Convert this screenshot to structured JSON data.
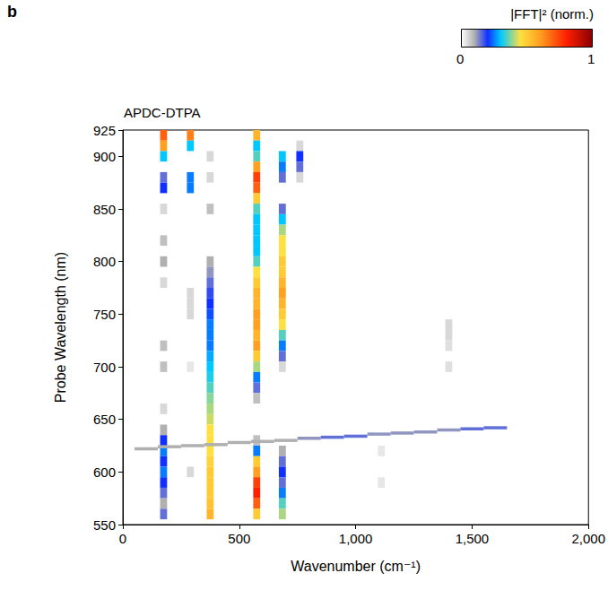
{
  "chart_data": {
    "type": "heatmap",
    "panel_label": "b",
    "title": "APDC-DTPA",
    "x_label": "Wavenumber (cm⁻¹)",
    "y_label": "Probe Wavelength (nm)",
    "xlim": [
      0,
      2000
    ],
    "xticks": [
      0,
      500,
      1000,
      1500,
      2000
    ],
    "ylim": [
      550,
      925
    ],
    "yticks": [
      550,
      600,
      650,
      700,
      750,
      800,
      850,
      900
    ],
    "grid": false,
    "colorbar": {
      "label": "|FFT|² (norm.)",
      "range": [
        0,
        1
      ],
      "ticks": [
        0,
        1
      ]
    },
    "cell_groups": [
      {
        "cell_width": 30,
        "cell_height": 10,
        "cells": [
          [
            175,
            920,
            0.7
          ],
          [
            175,
            910,
            0.6
          ],
          [
            175,
            900,
            0.3
          ],
          [
            175,
            880,
            0.15
          ],
          [
            175,
            870,
            0.2
          ],
          [
            175,
            850,
            0.05
          ],
          [
            175,
            820,
            0.08
          ],
          [
            175,
            800,
            0.1
          ],
          [
            175,
            780,
            0.05
          ],
          [
            175,
            720,
            0.08
          ],
          [
            175,
            700,
            0.08
          ],
          [
            175,
            660,
            0.05
          ],
          [
            175,
            640,
            0.1
          ],
          [
            175,
            630,
            0.2
          ],
          [
            175,
            620,
            0.25
          ],
          [
            175,
            610,
            0.2
          ],
          [
            175,
            600,
            0.25
          ],
          [
            175,
            590,
            0.2
          ],
          [
            175,
            580,
            0.15
          ],
          [
            175,
            570,
            0.1
          ],
          [
            175,
            560,
            0.15
          ],
          [
            290,
            920,
            0.65
          ],
          [
            290,
            910,
            0.3
          ],
          [
            290,
            880,
            0.25
          ],
          [
            290,
            870,
            0.25
          ],
          [
            290,
            770,
            0.05
          ],
          [
            290,
            760,
            0.05
          ],
          [
            290,
            750,
            0.05
          ],
          [
            290,
            700,
            0.03
          ],
          [
            290,
            600,
            0.05
          ],
          [
            375,
            900,
            0.05
          ],
          [
            375,
            880,
            0.05
          ],
          [
            375,
            850,
            0.08
          ],
          [
            375,
            800,
            0.1
          ],
          [
            375,
            790,
            0.12
          ],
          [
            375,
            780,
            0.15
          ],
          [
            375,
            770,
            0.18
          ],
          [
            375,
            760,
            0.2
          ],
          [
            375,
            750,
            0.22
          ],
          [
            375,
            740,
            0.25
          ],
          [
            375,
            730,
            0.25
          ],
          [
            375,
            720,
            0.25
          ],
          [
            375,
            710,
            0.28
          ],
          [
            375,
            700,
            0.3
          ],
          [
            375,
            690,
            0.32
          ],
          [
            375,
            680,
            0.35
          ],
          [
            375,
            670,
            0.38
          ],
          [
            375,
            660,
            0.4
          ],
          [
            375,
            650,
            0.42
          ],
          [
            375,
            640,
            0.45
          ],
          [
            375,
            630,
            0.45
          ],
          [
            375,
            620,
            0.45
          ],
          [
            375,
            610,
            0.48
          ],
          [
            375,
            600,
            0.5
          ],
          [
            375,
            590,
            0.5
          ],
          [
            375,
            580,
            0.5
          ],
          [
            375,
            570,
            0.52
          ],
          [
            375,
            560,
            0.55
          ],
          [
            575,
            920,
            0.55
          ],
          [
            575,
            910,
            0.3
          ],
          [
            575,
            900,
            0.35
          ],
          [
            575,
            890,
            0.6
          ],
          [
            575,
            880,
            0.75
          ],
          [
            575,
            870,
            0.7
          ],
          [
            575,
            860,
            0.5
          ],
          [
            575,
            850,
            0.35
          ],
          [
            575,
            840,
            0.3
          ],
          [
            575,
            830,
            0.3
          ],
          [
            575,
            820,
            0.3
          ],
          [
            575,
            810,
            0.3
          ],
          [
            575,
            800,
            0.35
          ],
          [
            575,
            790,
            0.45
          ],
          [
            575,
            780,
            0.5
          ],
          [
            575,
            770,
            0.55
          ],
          [
            575,
            760,
            0.55
          ],
          [
            575,
            750,
            0.6
          ],
          [
            575,
            740,
            0.6
          ],
          [
            575,
            730,
            0.55
          ],
          [
            575,
            720,
            0.6
          ],
          [
            575,
            710,
            0.5
          ],
          [
            575,
            700,
            0.4
          ],
          [
            575,
            690,
            0.25
          ],
          [
            575,
            680,
            0.15
          ],
          [
            575,
            670,
            0.08
          ],
          [
            575,
            630,
            0.08
          ],
          [
            575,
            620,
            0.25
          ],
          [
            575,
            610,
            0.5
          ],
          [
            575,
            600,
            0.6
          ],
          [
            575,
            590,
            0.75
          ],
          [
            575,
            580,
            0.8
          ],
          [
            575,
            570,
            0.7
          ],
          [
            575,
            560,
            0.5
          ],
          [
            685,
            900,
            0.3
          ],
          [
            685,
            890,
            0.25
          ],
          [
            685,
            880,
            0.15
          ],
          [
            685,
            850,
            0.15
          ],
          [
            685,
            840,
            0.3
          ],
          [
            685,
            830,
            0.4
          ],
          [
            685,
            820,
            0.45
          ],
          [
            685,
            810,
            0.45
          ],
          [
            685,
            800,
            0.5
          ],
          [
            685,
            790,
            0.5
          ],
          [
            685,
            780,
            0.55
          ],
          [
            685,
            770,
            0.6
          ],
          [
            685,
            760,
            0.55
          ],
          [
            685,
            750,
            0.5
          ],
          [
            685,
            740,
            0.45
          ],
          [
            685,
            730,
            0.35
          ],
          [
            685,
            720,
            0.25
          ],
          [
            685,
            710,
            0.15
          ],
          [
            685,
            700,
            0.05
          ],
          [
            685,
            620,
            0.1
          ],
          [
            685,
            610,
            0.15
          ],
          [
            685,
            600,
            0.2
          ],
          [
            685,
            590,
            0.15
          ],
          [
            685,
            580,
            0.25
          ],
          [
            685,
            570,
            0.35
          ],
          [
            685,
            560,
            0.4
          ],
          [
            760,
            910,
            0.05
          ],
          [
            760,
            900,
            0.2
          ],
          [
            760,
            890,
            0.15
          ],
          [
            760,
            880,
            0.05
          ],
          [
            1110,
            620,
            0.03
          ],
          [
            1110,
            590,
            0.03
          ],
          [
            1400,
            740,
            0.05
          ],
          [
            1400,
            730,
            0.05
          ],
          [
            1400,
            720,
            0.04
          ],
          [
            1400,
            700,
            0.04
          ]
        ]
      },
      {
        "cell_width": 100,
        "cell_height": 3,
        "cells": [
          [
            100,
            622,
            0.1
          ],
          [
            200,
            624,
            0.1
          ],
          [
            300,
            625,
            0.1
          ],
          [
            400,
            626,
            0.1
          ],
          [
            500,
            628,
            0.1
          ],
          [
            600,
            629,
            0.1
          ],
          [
            700,
            630,
            0.1
          ],
          [
            800,
            632,
            0.12
          ],
          [
            900,
            633,
            0.15
          ],
          [
            1000,
            634,
            0.15
          ],
          [
            1100,
            636,
            0.12
          ],
          [
            1200,
            637,
            0.12
          ],
          [
            1300,
            638,
            0.12
          ],
          [
            1400,
            640,
            0.12
          ],
          [
            1500,
            641,
            0.15
          ],
          [
            1600,
            642,
            0.15
          ]
        ]
      }
    ]
  }
}
